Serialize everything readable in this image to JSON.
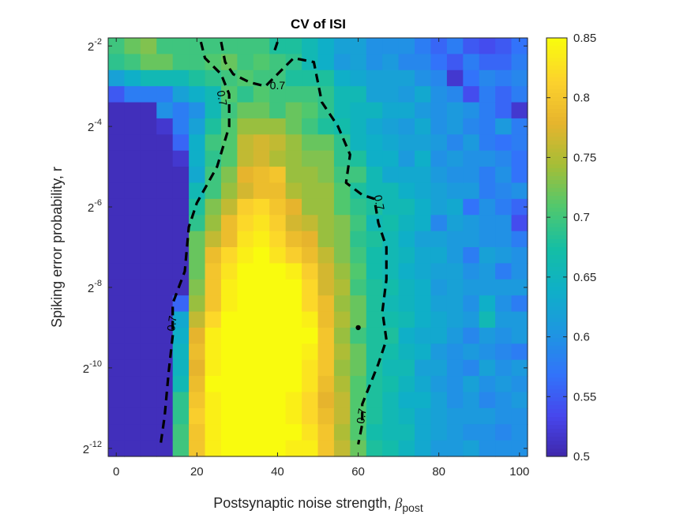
{
  "chart_data": {
    "type": "heatmap",
    "title": "CV of ISI",
    "xlabel": "Postsynaptic noise strength, ",
    "xlabel_symbol": "β",
    "xlabel_sub": "post",
    "ylabel": "Spiking error probability, r",
    "x": [
      0,
      4,
      8,
      12,
      16,
      20,
      24,
      28,
      32,
      36,
      40,
      44,
      48,
      52,
      56,
      60,
      64,
      68,
      72,
      76,
      80,
      84,
      88,
      92,
      96,
      100
    ],
    "y_exponents": [
      -2,
      -2.4,
      -2.8,
      -3.2,
      -3.6,
      -4,
      -4.4,
      -4.8,
      -5.2,
      -5.6,
      -6,
      -6.4,
      -6.8,
      -7.2,
      -7.6,
      -8,
      -8.4,
      -8.8,
      -9.2,
      -9.6,
      -10,
      -10.4,
      -10.8,
      -11.2,
      -11.6,
      -12
    ],
    "xlim": [
      -2,
      102
    ],
    "ylim_exponent": [
      -12.2,
      -1.8
    ],
    "x_ticks": [
      "0",
      "20",
      "40",
      "60",
      "80",
      "100"
    ],
    "y_ticks": [
      {
        "base": "2",
        "exp": "-2"
      },
      {
        "base": "2",
        "exp": "-4"
      },
      {
        "base": "2",
        "exp": "-6"
      },
      {
        "base": "2",
        "exp": "-8"
      },
      {
        "base": "2",
        "exp": "-10"
      },
      {
        "base": "2",
        "exp": "-12"
      }
    ],
    "colorbar": {
      "min": 0.5,
      "max": 0.85,
      "ticks": [
        "0.5",
        "0.55",
        "0.6",
        "0.65",
        "0.7",
        "0.75",
        "0.8",
        "0.85"
      ],
      "colormap": "parula"
    },
    "values": [
      [
        0.7,
        0.72,
        0.73,
        0.7,
        0.7,
        0.7,
        0.7,
        0.7,
        0.7,
        0.7,
        0.68,
        0.68,
        0.66,
        0.64,
        0.62,
        0.62,
        0.6,
        0.6,
        0.6,
        0.58,
        0.56,
        0.58,
        0.55,
        0.54,
        0.55,
        0.57
      ],
      [
        0.69,
        0.7,
        0.72,
        0.72,
        0.7,
        0.7,
        0.71,
        0.72,
        0.7,
        0.71,
        0.7,
        0.69,
        0.66,
        0.64,
        0.61,
        0.62,
        0.6,
        0.61,
        0.59,
        0.59,
        0.57,
        0.55,
        0.58,
        0.56,
        0.56,
        0.58
      ],
      [
        0.62,
        0.64,
        0.66,
        0.66,
        0.66,
        0.68,
        0.69,
        0.7,
        0.71,
        0.7,
        0.7,
        0.68,
        0.68,
        0.68,
        0.64,
        0.63,
        0.62,
        0.62,
        0.62,
        0.6,
        0.59,
        0.52,
        0.57,
        0.59,
        0.58,
        0.59
      ],
      [
        0.55,
        0.58,
        0.58,
        0.58,
        0.62,
        0.64,
        0.66,
        0.71,
        0.69,
        0.71,
        0.7,
        0.7,
        0.7,
        0.69,
        0.66,
        0.66,
        0.62,
        0.62,
        0.61,
        0.63,
        0.6,
        0.59,
        0.54,
        0.58,
        0.56,
        0.58
      ],
      [
        0.51,
        0.51,
        0.51,
        0.6,
        0.58,
        0.6,
        0.66,
        0.7,
        0.72,
        0.72,
        0.7,
        0.72,
        0.71,
        0.69,
        0.66,
        0.65,
        0.65,
        0.63,
        0.63,
        0.61,
        0.6,
        0.61,
        0.6,
        0.58,
        0.56,
        0.52
      ],
      [
        0.51,
        0.51,
        0.51,
        0.52,
        0.58,
        0.62,
        0.68,
        0.71,
        0.74,
        0.74,
        0.74,
        0.72,
        0.7,
        0.68,
        0.67,
        0.65,
        0.63,
        0.62,
        0.61,
        0.63,
        0.6,
        0.61,
        0.59,
        0.58,
        0.61,
        0.58
      ],
      [
        0.51,
        0.51,
        0.51,
        0.51,
        0.56,
        0.64,
        0.7,
        0.71,
        0.76,
        0.77,
        0.76,
        0.74,
        0.72,
        0.72,
        0.69,
        0.65,
        0.64,
        0.63,
        0.62,
        0.62,
        0.61,
        0.59,
        0.61,
        0.58,
        0.57,
        0.58
      ],
      [
        0.51,
        0.51,
        0.51,
        0.51,
        0.52,
        0.64,
        0.69,
        0.71,
        0.76,
        0.77,
        0.75,
        0.74,
        0.73,
        0.73,
        0.69,
        0.68,
        0.64,
        0.64,
        0.61,
        0.64,
        0.6,
        0.61,
        0.6,
        0.6,
        0.59,
        0.57
      ],
      [
        0.51,
        0.51,
        0.51,
        0.51,
        0.51,
        0.63,
        0.7,
        0.73,
        0.78,
        0.79,
        0.8,
        0.74,
        0.74,
        0.73,
        0.7,
        0.7,
        0.66,
        0.63,
        0.63,
        0.63,
        0.61,
        0.6,
        0.6,
        0.58,
        0.6,
        0.57
      ],
      [
        0.51,
        0.51,
        0.51,
        0.51,
        0.51,
        0.66,
        0.7,
        0.74,
        0.77,
        0.79,
        0.79,
        0.75,
        0.74,
        0.74,
        0.71,
        0.68,
        0.66,
        0.66,
        0.64,
        0.63,
        0.62,
        0.61,
        0.61,
        0.58,
        0.59,
        0.6
      ],
      [
        0.51,
        0.51,
        0.51,
        0.51,
        0.51,
        0.68,
        0.73,
        0.76,
        0.81,
        0.82,
        0.8,
        0.78,
        0.74,
        0.74,
        0.71,
        0.69,
        0.68,
        0.66,
        0.66,
        0.64,
        0.62,
        0.63,
        0.57,
        0.6,
        0.58,
        0.56
      ],
      [
        0.51,
        0.51,
        0.51,
        0.51,
        0.51,
        0.69,
        0.74,
        0.79,
        0.82,
        0.83,
        0.81,
        0.77,
        0.76,
        0.74,
        0.73,
        0.7,
        0.66,
        0.67,
        0.65,
        0.64,
        0.59,
        0.62,
        0.61,
        0.6,
        0.6,
        0.54
      ],
      [
        0.51,
        0.51,
        0.51,
        0.51,
        0.51,
        0.72,
        0.76,
        0.79,
        0.83,
        0.84,
        0.82,
        0.79,
        0.78,
        0.74,
        0.73,
        0.69,
        0.68,
        0.66,
        0.64,
        0.62,
        0.62,
        0.61,
        0.61,
        0.6,
        0.6,
        0.58
      ],
      [
        0.51,
        0.51,
        0.51,
        0.51,
        0.51,
        0.72,
        0.79,
        0.82,
        0.84,
        0.85,
        0.83,
        0.81,
        0.79,
        0.76,
        0.73,
        0.7,
        0.67,
        0.66,
        0.65,
        0.63,
        0.63,
        0.61,
        0.58,
        0.62,
        0.61,
        0.6
      ],
      [
        0.51,
        0.51,
        0.51,
        0.51,
        0.51,
        0.72,
        0.8,
        0.83,
        0.85,
        0.85,
        0.85,
        0.84,
        0.81,
        0.77,
        0.74,
        0.71,
        0.67,
        0.66,
        0.64,
        0.63,
        0.62,
        0.62,
        0.6,
        0.61,
        0.58,
        0.6
      ],
      [
        0.51,
        0.51,
        0.51,
        0.51,
        0.51,
        0.73,
        0.8,
        0.84,
        0.85,
        0.85,
        0.85,
        0.85,
        0.82,
        0.77,
        0.75,
        0.7,
        0.68,
        0.67,
        0.65,
        0.64,
        0.61,
        0.62,
        0.61,
        0.61,
        0.61,
        0.61
      ],
      [
        0.51,
        0.51,
        0.51,
        0.51,
        0.56,
        0.74,
        0.8,
        0.84,
        0.85,
        0.85,
        0.85,
        0.85,
        0.82,
        0.79,
        0.74,
        0.72,
        0.68,
        0.66,
        0.65,
        0.64,
        0.62,
        0.62,
        0.6,
        0.64,
        0.6,
        0.58
      ],
      [
        0.51,
        0.51,
        0.51,
        0.51,
        0.63,
        0.76,
        0.82,
        0.85,
        0.85,
        0.85,
        0.85,
        0.85,
        0.84,
        0.79,
        0.75,
        0.72,
        0.68,
        0.67,
        0.66,
        0.64,
        0.63,
        0.62,
        0.61,
        0.66,
        0.61,
        0.61
      ],
      [
        0.51,
        0.51,
        0.51,
        0.51,
        0.64,
        0.78,
        0.84,
        0.85,
        0.85,
        0.85,
        0.85,
        0.85,
        0.85,
        0.8,
        0.74,
        0.7,
        0.68,
        0.68,
        0.64,
        0.63,
        0.63,
        0.61,
        0.59,
        0.61,
        0.6,
        0.61
      ],
      [
        0.51,
        0.51,
        0.51,
        0.51,
        0.65,
        0.79,
        0.84,
        0.85,
        0.85,
        0.85,
        0.85,
        0.85,
        0.84,
        0.8,
        0.75,
        0.72,
        0.68,
        0.67,
        0.65,
        0.64,
        0.61,
        0.6,
        0.61,
        0.6,
        0.59,
        0.58
      ],
      [
        0.51,
        0.51,
        0.51,
        0.51,
        0.65,
        0.78,
        0.84,
        0.85,
        0.85,
        0.85,
        0.85,
        0.85,
        0.83,
        0.8,
        0.74,
        0.72,
        0.68,
        0.66,
        0.66,
        0.62,
        0.62,
        0.6,
        0.59,
        0.62,
        0.6,
        0.61
      ],
      [
        0.51,
        0.51,
        0.51,
        0.51,
        0.66,
        0.79,
        0.85,
        0.85,
        0.85,
        0.85,
        0.85,
        0.85,
        0.83,
        0.79,
        0.75,
        0.71,
        0.68,
        0.67,
        0.65,
        0.63,
        0.61,
        0.6,
        0.62,
        0.6,
        0.61,
        0.6
      ],
      [
        0.51,
        0.51,
        0.51,
        0.51,
        0.69,
        0.8,
        0.84,
        0.85,
        0.85,
        0.85,
        0.85,
        0.84,
        0.82,
        0.78,
        0.76,
        0.71,
        0.68,
        0.66,
        0.64,
        0.64,
        0.62,
        0.6,
        0.61,
        0.59,
        0.6,
        0.61
      ],
      [
        0.51,
        0.51,
        0.51,
        0.51,
        0.69,
        0.81,
        0.84,
        0.85,
        0.85,
        0.85,
        0.85,
        0.84,
        0.82,
        0.79,
        0.76,
        0.71,
        0.68,
        0.66,
        0.65,
        0.63,
        0.62,
        0.61,
        0.61,
        0.61,
        0.6,
        0.6
      ],
      [
        0.51,
        0.51,
        0.51,
        0.51,
        0.7,
        0.8,
        0.84,
        0.85,
        0.85,
        0.85,
        0.85,
        0.85,
        0.83,
        0.8,
        0.75,
        0.71,
        0.67,
        0.66,
        0.66,
        0.63,
        0.62,
        0.61,
        0.6,
        0.6,
        0.59,
        0.6
      ],
      [
        0.51,
        0.51,
        0.51,
        0.51,
        0.7,
        0.8,
        0.84,
        0.85,
        0.85,
        0.85,
        0.85,
        0.84,
        0.84,
        0.8,
        0.76,
        0.72,
        0.68,
        0.67,
        0.65,
        0.63,
        0.61,
        0.61,
        0.62,
        0.6,
        0.6,
        0.6
      ]
    ],
    "contour": {
      "level_label": "0.7",
      "style": "dashed-black",
      "paths": [
        [
          [
            21,
            -1.9
          ],
          [
            22,
            -2.3
          ],
          [
            26,
            -2.7
          ],
          [
            28,
            -3.2
          ],
          [
            28,
            -4.0
          ],
          [
            25,
            -5.0
          ],
          [
            20,
            -5.9
          ],
          [
            18,
            -6.5
          ],
          [
            17,
            -7.6
          ],
          [
            14,
            -8.4
          ],
          [
            14,
            -9.2
          ],
          [
            13,
            -10.1
          ],
          [
            12,
            -11.2
          ],
          [
            11,
            -11.9
          ]
        ],
        [
          [
            26,
            -1.9
          ],
          [
            27,
            -2.4
          ],
          [
            29,
            -2.7
          ],
          [
            33,
            -2.9
          ],
          [
            37,
            -3.0
          ],
          [
            41,
            -2.6
          ],
          [
            44,
            -2.3
          ],
          [
            49,
            -2.4
          ],
          [
            50,
            -2.9
          ],
          [
            51,
            -3.4
          ],
          [
            55,
            -4.0
          ],
          [
            58,
            -4.7
          ],
          [
            57,
            -5.4
          ],
          [
            61,
            -5.7
          ],
          [
            64,
            -5.8
          ],
          [
            65,
            -6.4
          ],
          [
            67,
            -7.0
          ],
          [
            67,
            -7.8
          ],
          [
            66,
            -8.6
          ],
          [
            67,
            -9.3
          ],
          [
            65,
            -9.9
          ],
          [
            63,
            -10.4
          ],
          [
            61,
            -10.9
          ],
          [
            61,
            -11.4
          ],
          [
            60,
            -11.9
          ]
        ],
        [
          [
            40,
            -1.9
          ],
          [
            39,
            -2.2
          ]
        ]
      ],
      "labels": [
        {
          "x": 26,
          "y": -3.3,
          "angle": 80
        },
        {
          "x": 40,
          "y": -3.0,
          "angle": 0
        },
        {
          "x": 65,
          "y": -5.9,
          "angle": 78
        },
        {
          "x": 14,
          "y": -8.9,
          "angle": -82
        },
        {
          "x": 61,
          "y": -11.2,
          "angle": -82
        }
      ]
    }
  }
}
